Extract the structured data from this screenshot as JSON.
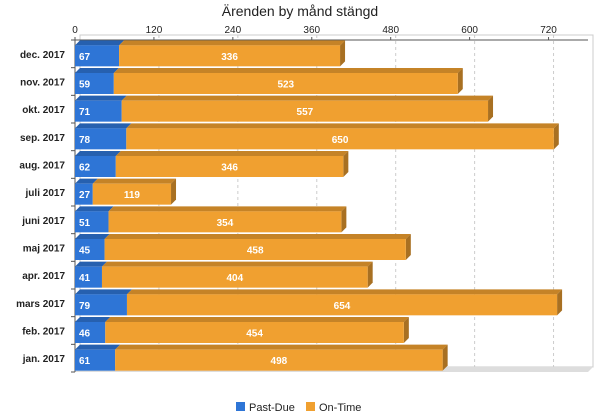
{
  "chart_data": {
    "type": "bar",
    "orientation": "horizontal",
    "stacked": true,
    "title": "Ärenden by månd stängd",
    "xlabel": "",
    "ylabel": "",
    "xlim": [
      0,
      780
    ],
    "x_ticks": [
      0,
      120,
      240,
      360,
      480,
      600,
      720
    ],
    "x_axis_position": "top",
    "grid": true,
    "legend_position": "bottom",
    "categories": [
      "dec. 2017",
      "nov. 2017",
      "okt. 2017",
      "sep. 2017",
      "aug. 2017",
      "juli 2017",
      "juni 2017",
      "maj 2017",
      "apr. 2017",
      "mars 2017",
      "feb. 2017",
      "jan. 2017"
    ],
    "series": [
      {
        "name": "Past-Due",
        "color": "#2e75d6",
        "values": [
          67,
          59,
          71,
          78,
          62,
          27,
          51,
          45,
          41,
          79,
          46,
          61
        ]
      },
      {
        "name": "On-Time",
        "color": "#f0a030",
        "values": [
          336,
          523,
          557,
          650,
          346,
          119,
          354,
          458,
          404,
          654,
          454,
          498
        ]
      }
    ]
  }
}
